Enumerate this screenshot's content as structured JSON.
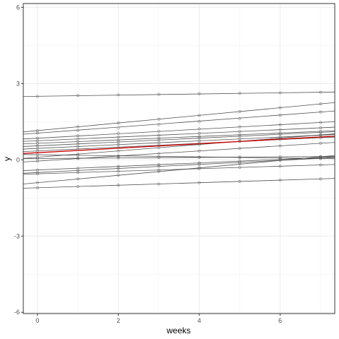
{
  "chart_data": {
    "type": "line",
    "title": "",
    "xlabel": "weeks",
    "ylabel": "y",
    "xlim": [
      -0.35,
      7.35
    ],
    "ylim": [
      -6.05,
      6.15
    ],
    "x_ticks": [
      0,
      2,
      4,
      6
    ],
    "x_tick_labels": [
      "0",
      "2",
      "4",
      "6"
    ],
    "y_ticks": [
      -6,
      -3,
      0,
      3,
      6
    ],
    "y_tick_labels": [
      "-6",
      "-3",
      "0",
      "3",
      "6"
    ],
    "grid": true,
    "legend": "none",
    "x": [
      0,
      1,
      2,
      3,
      4,
      5,
      6,
      7
    ],
    "colors": {
      "individual": "#333333",
      "mean": "#cc0000",
      "points": "#555555"
    },
    "series": [
      {
        "values": [
          2.5,
          2.53,
          2.56,
          2.58,
          2.6,
          2.62,
          2.64,
          2.66
        ]
      },
      {
        "values": [
          1.15,
          1.3,
          1.45,
          1.6,
          1.75,
          1.9,
          2.05,
          2.2
        ]
      },
      {
        "values": [
          1.05,
          1.15,
          1.25,
          1.38,
          1.5,
          1.62,
          1.75,
          1.88
        ]
      },
      {
        "values": [
          0.85,
          0.95,
          1.05,
          1.13,
          1.22,
          1.3,
          1.38,
          1.47
        ]
      },
      {
        "values": [
          0.75,
          0.82,
          0.9,
          0.97,
          1.04,
          1.12,
          1.19,
          1.26
        ]
      },
      {
        "values": [
          0.65,
          0.72,
          0.78,
          0.85,
          0.92,
          0.99,
          1.06,
          1.12
        ]
      },
      {
        "values": [
          0.55,
          0.62,
          0.7,
          0.78,
          0.86,
          0.93,
          1.01,
          1.08
        ]
      },
      {
        "values": [
          0.45,
          0.52,
          0.6,
          0.67,
          0.75,
          0.82,
          0.9,
          0.97
        ]
      },
      {
        "values": [
          0.35,
          0.42,
          0.5,
          0.58,
          0.65,
          0.73,
          0.8,
          0.87
        ]
      },
      {
        "values": [
          0.1,
          0.22,
          0.35,
          0.48,
          0.6,
          0.73,
          0.85,
          0.98
        ]
      },
      {
        "values": [
          -0.05,
          0.05,
          0.15,
          0.25,
          0.35,
          0.45,
          0.55,
          0.65
        ]
      },
      {
        "values": [
          0.05,
          0.06,
          0.08,
          0.09,
          0.1,
          0.11,
          0.12,
          0.13
        ]
      },
      {
        "values": [
          0.2,
          0.17,
          0.14,
          0.12,
          0.1,
          0.08,
          0.06,
          0.05
        ]
      },
      {
        "values": [
          -0.4,
          -0.33,
          -0.26,
          -0.19,
          -0.12,
          -0.05,
          0.02,
          0.09
        ]
      },
      {
        "values": [
          -0.5,
          -0.42,
          -0.34,
          -0.26,
          -0.18,
          -0.1,
          -0.02,
          0.06
        ]
      },
      {
        "values": [
          -0.55,
          -0.5,
          -0.45,
          -0.4,
          -0.35,
          -0.3,
          -0.25,
          -0.2
        ]
      },
      {
        "values": [
          -0.9,
          -0.75,
          -0.6,
          -0.45,
          -0.3,
          -0.15,
          0.0,
          0.12
        ]
      },
      {
        "values": [
          -1.1,
          -1.05,
          -1.0,
          -0.95,
          -0.9,
          -0.85,
          -0.8,
          -0.75
        ]
      },
      {
        "name": "mean",
        "values": [
          0.28,
          0.38,
          0.48,
          0.57,
          0.66,
          0.74,
          0.82,
          0.9
        ],
        "mean": true
      }
    ]
  }
}
